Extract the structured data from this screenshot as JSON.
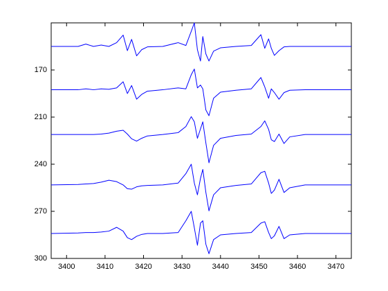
{
  "chart_data": {
    "type": "line",
    "x": [
      3396,
      3403,
      3405,
      3407,
      3409,
      3411,
      3413,
      3414.7,
      3415.8,
      3416.9,
      3418.2,
      3419.5,
      3421,
      3425,
      3429,
      3431,
      3432.4,
      3433.2,
      3434,
      3434.8,
      3435.4,
      3436.2,
      3437,
      3438.2,
      3440,
      3444,
      3448,
      3450.5,
      3451.5,
      3452.5,
      3453.2,
      3454,
      3455.2,
      3456.5,
      3458,
      3462,
      3474
    ],
    "series": [
      {
        "color": "#0000ff",
        "values": [
          0.5,
          0.5,
          0.45,
          0.5,
          0.47,
          0.5,
          0.42,
          0.26,
          0.59,
          0.35,
          0.7,
          0.57,
          0.51,
          0.5,
          0.42,
          0.48,
          0.18,
          0.0,
          0.57,
          0.81,
          0.29,
          0.66,
          0.81,
          0.6,
          0.53,
          0.5,
          0.48,
          0.25,
          0.54,
          0.34,
          0.54,
          0.69,
          0.59,
          0.51,
          0.5,
          0.5,
          0.5
        ]
      },
      {
        "color": "#0000ff",
        "values": [
          1.42,
          1.42,
          1.4,
          1.42,
          1.4,
          1.41,
          1.38,
          1.25,
          1.5,
          1.33,
          1.62,
          1.52,
          1.45,
          1.42,
          1.38,
          1.4,
          1.1,
          0.98,
          1.38,
          1.32,
          1.4,
          1.85,
          1.97,
          1.6,
          1.47,
          1.43,
          1.4,
          1.16,
          1.36,
          1.6,
          1.4,
          1.48,
          1.62,
          1.48,
          1.43,
          1.42,
          1.42
        ]
      },
      {
        "color": "#0000ff",
        "values": [
          2.37,
          2.37,
          2.37,
          2.37,
          2.36,
          2.34,
          2.3,
          2.28,
          2.36,
          2.46,
          2.51,
          2.45,
          2.4,
          2.37,
          2.33,
          2.2,
          1.99,
          2.1,
          2.45,
          2.25,
          2.1,
          2.55,
          2.97,
          2.6,
          2.45,
          2.39,
          2.36,
          2.2,
          2.08,
          2.26,
          2.48,
          2.52,
          2.36,
          2.56,
          2.42,
          2.37,
          2.37
        ]
      },
      {
        "color": "#0000ff",
        "values": [
          3.44,
          3.43,
          3.42,
          3.41,
          3.38,
          3.34,
          3.37,
          3.44,
          3.52,
          3.53,
          3.48,
          3.46,
          3.45,
          3.44,
          3.4,
          3.2,
          3.0,
          3.4,
          3.65,
          3.3,
          3.11,
          3.6,
          3.99,
          3.65,
          3.5,
          3.45,
          3.42,
          3.18,
          3.15,
          3.4,
          3.62,
          3.55,
          3.32,
          3.6,
          3.5,
          3.44,
          3.44
        ]
      },
      {
        "color": "#0000ff",
        "values": [
          4.47,
          4.46,
          4.45,
          4.45,
          4.44,
          4.42,
          4.34,
          4.42,
          4.56,
          4.6,
          4.53,
          4.49,
          4.47,
          4.47,
          4.45,
          4.2,
          4.0,
          4.35,
          4.72,
          4.25,
          4.2,
          4.7,
          4.9,
          4.6,
          4.5,
          4.47,
          4.45,
          4.25,
          4.22,
          4.45,
          4.58,
          4.52,
          4.32,
          4.58,
          4.5,
          4.47,
          4.47
        ]
      }
    ],
    "xlim": [
      3396,
      3474
    ],
    "xticks": [
      3400,
      3410,
      3420,
      3430,
      3440,
      3450,
      3460,
      3470
    ],
    "ylim": [
      5,
      0
    ],
    "yticks": [
      {
        "value": 1,
        "label": "170"
      },
      {
        "value": 2,
        "label": "210"
      },
      {
        "value": 3,
        "label": "240"
      },
      {
        "value": 4,
        "label": "270"
      },
      {
        "value": 5,
        "label": "300"
      }
    ],
    "grid": false
  }
}
